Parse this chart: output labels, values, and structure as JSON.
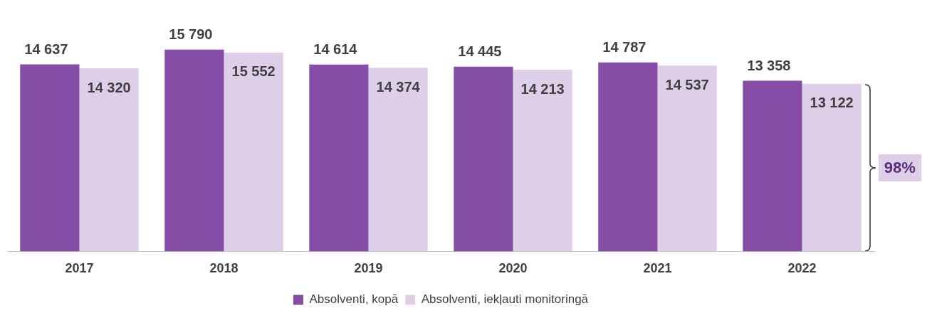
{
  "chart_data": {
    "type": "bar",
    "categories": [
      "2017",
      "2018",
      "2019",
      "2020",
      "2021",
      "2022"
    ],
    "series": [
      {
        "name": "Absolventi, kopā",
        "color": "#854ca8",
        "values": [
          14637,
          15790,
          14614,
          14445,
          14787,
          13358
        ]
      },
      {
        "name": "Absolventi, iekļauti monitoringā",
        "color": "#ddcfe8",
        "values": [
          14320,
          15552,
          14374,
          14213,
          14537,
          13122
        ]
      }
    ],
    "tick_labels": "x",
    "data_labels": true,
    "legend": "bottom",
    "grid": false,
    "annotations": [
      "98%"
    ]
  }
}
